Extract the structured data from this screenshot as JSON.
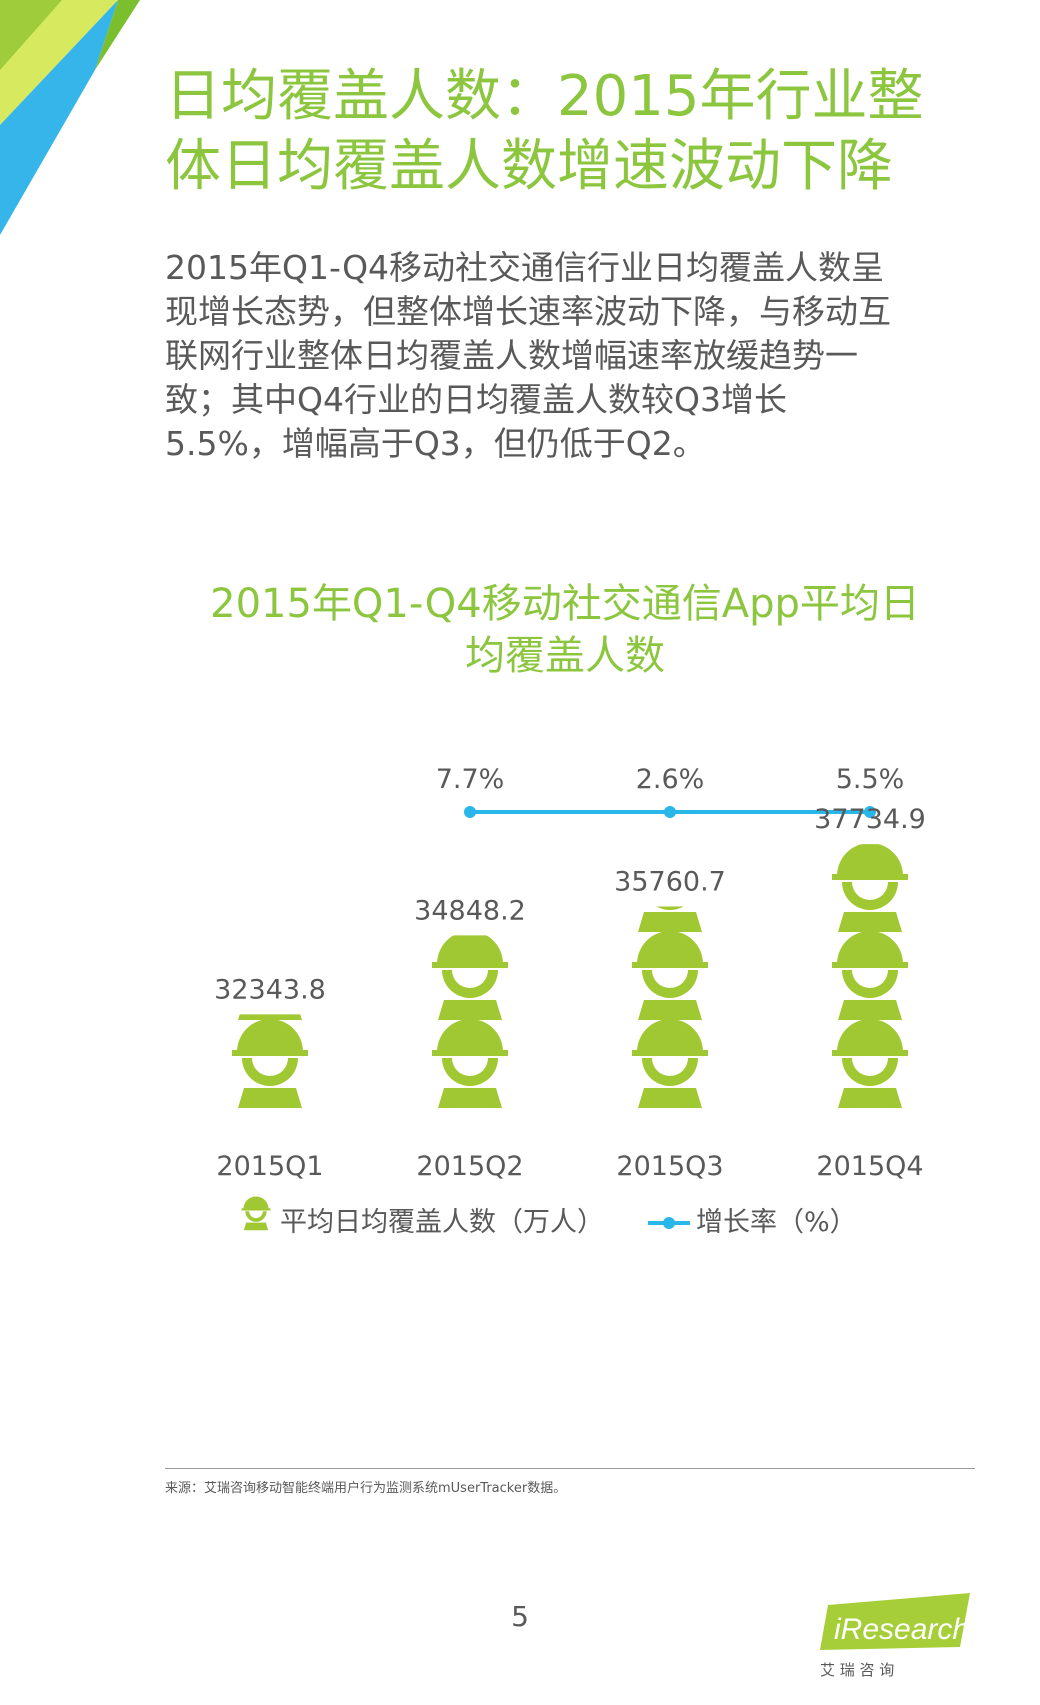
{
  "title_lines": [
    "日均覆盖人数：2015年行业整",
    "体日均覆盖人数增速波动下降"
  ],
  "body_lines": [
    "2015年Q1-Q4移动社交通信行业日均覆盖人数呈",
    "现增长态势，但整体增长速率波动下降，与移动互",
    "联网行业整体日均覆盖人数增幅速率放缓趋势一",
    "致；其中Q4行业的日均覆盖人数较Q3增长",
    "5.5%，增幅高于Q3，但仍低于Q2。"
  ],
  "chart_data": {
    "type": "bar",
    "title_lines": [
      "2015年Q1-Q4移动社交通信App平均日",
      "均覆盖人数"
    ],
    "categories": [
      "2015Q1",
      "2015Q2",
      "2015Q3",
      "2015Q4"
    ],
    "series": [
      {
        "name": "平均日均覆盖人数（万人）",
        "type": "bar",
        "values": [
          32343.8,
          34848.2,
          35760.7,
          37734.9
        ],
        "labels": [
          "32343.8",
          "34848.2",
          "35760.7",
          "37734.9"
        ],
        "color": "#a0c832",
        "marker": "person-icon"
      },
      {
        "name": "增长率（%）",
        "type": "line",
        "x": [
          "2015Q2",
          "2015Q3",
          "2015Q4"
        ],
        "values": [
          7.7,
          2.6,
          5.5
        ],
        "labels": [
          "7.7%",
          "2.6%",
          "5.5%"
        ],
        "color": "#29b6e8"
      }
    ],
    "legend_position": "bottom",
    "grid": false
  },
  "source": "来源：艾瑞咨询移动智能终端用户行为监测系统mUserTracker数据。",
  "page_number": "5",
  "logo": {
    "brand": "iResearch",
    "cn": "艾 瑞 咨 询"
  },
  "colors": {
    "accent_green": "#8cc63f",
    "bar_green": "#a0c832",
    "line_blue": "#29b6e8",
    "corner_blue": "#35b5e9",
    "text_gray": "#595959"
  }
}
